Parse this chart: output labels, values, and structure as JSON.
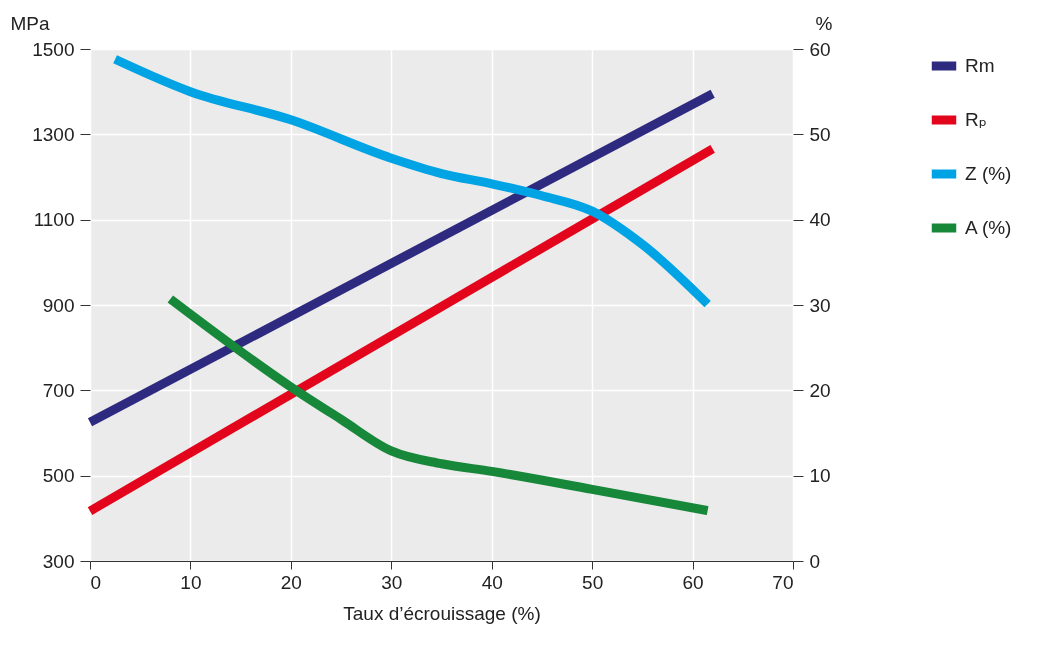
{
  "chart_data": {
    "type": "line",
    "xlabel": "Taux d’écrouissage (%)",
    "ylabel": "MPa",
    "y2label": "%",
    "xlim": [
      0,
      70
    ],
    "xticks": [
      0,
      10,
      20,
      30,
      40,
      50,
      60,
      70
    ],
    "ylim": [
      300,
      1500
    ],
    "yticks": [
      300,
      500,
      700,
      900,
      1100,
      1300,
      1500
    ],
    "y2lim": [
      0,
      60
    ],
    "y2ticks": [
      0,
      10,
      20,
      30,
      40,
      50,
      60
    ],
    "grid": true,
    "legend": "right",
    "line_style": "solid",
    "marker": "none",
    "series": [
      {
        "name": "Rm",
        "color": "#2e2a80",
        "x": [
          0,
          62
        ],
        "values": [
          625,
          1395
        ]
      },
      {
        "name": "Rₚ",
        "color": "#e3051b",
        "x": [
          0,
          62
        ],
        "values": [
          417,
          1266
        ]
      },
      {
        "name": "Z (%)",
        "color": "#00a3e4",
        "axis": "y2",
        "x": [
          2.5,
          10,
          20,
          30,
          35,
          40,
          45,
          50,
          55,
          61.5
        ],
        "values": [
          58.8,
          55.0,
          51.7,
          47.2,
          45.4,
          44.2,
          42.8,
          41.0,
          37.1,
          30.1
        ]
      },
      {
        "name": "A (%)",
        "color": "#17873a",
        "axis": "y2",
        "x": [
          8,
          20,
          25,
          30,
          35,
          40,
          50,
          61.5
        ],
        "values": [
          30.7,
          20.4,
          16.6,
          12.9,
          11.4,
          10.5,
          8.4,
          5.9
        ]
      }
    ]
  }
}
